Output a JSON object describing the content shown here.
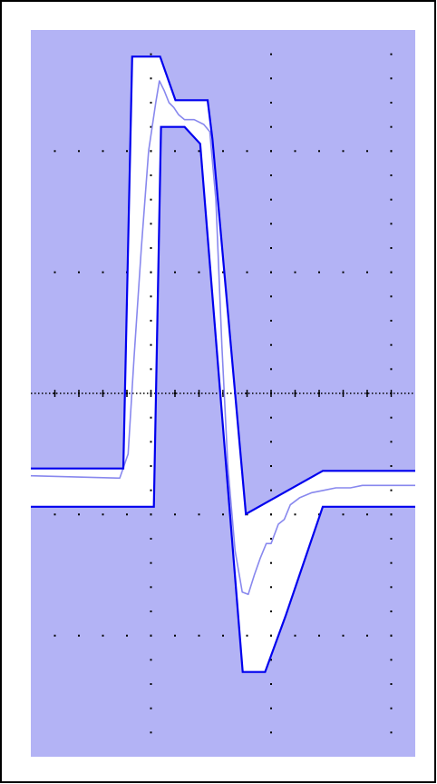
{
  "chart_data": {
    "type": "line",
    "title": "",
    "xlabel": "",
    "ylabel": "",
    "grid": true,
    "grid_style": "dotted",
    "legend": "none",
    "xlim": [
      -4,
      12
    ],
    "ylim": [
      -15,
      15
    ],
    "divisions": {
      "x": 16,
      "y": 30,
      "major_x": 5,
      "major_y": 5
    },
    "colors": {
      "frame": "#000000",
      "mask_fill": "#b3b3f5",
      "mask_edge": "#0000ee",
      "trace": "#8888ee",
      "envelope": "#ffffff",
      "grid_dot": "#000000"
    },
    "series": [
      {
        "role": "mask-upper-limit",
        "x": [
          -4.0,
          -0.15,
          0.22,
          1.38,
          2.02,
          3.36,
          3.56,
          4.95,
          8.15,
          12.0
        ],
        "y": [
          -3.1,
          -3.1,
          13.9,
          13.9,
          12.1,
          12.1,
          10.5,
          -4.98,
          -3.2,
          -3.2
        ]
      },
      {
        "role": "mask-lower-limit",
        "x": [
          -4.0,
          1.12,
          1.12,
          1.42,
          2.4,
          3.05,
          4.82,
          4.82,
          5.75,
          6.6,
          8.15,
          12.0
        ],
        "y": [
          -4.68,
          -4.68,
          -4.68,
          11.0,
          11.0,
          10.3,
          -11.5,
          -11.5,
          -11.5,
          -9.2,
          -4.68,
          -4.68
        ]
      },
      {
        "role": "signal-trace",
        "x": [
          -4.0,
          -0.3,
          0.05,
          0.3,
          0.6,
          0.9,
          1.2,
          1.35,
          1.55,
          1.75,
          1.95,
          2.15,
          2.4,
          2.8,
          3.2,
          3.45,
          3.7,
          3.95,
          4.2,
          4.5,
          4.8,
          5.05,
          5.3,
          5.55,
          5.8,
          6.0,
          6.3,
          6.55,
          6.8,
          7.2,
          7.7,
          8.2,
          8.7,
          9.3,
          9.8,
          10.2,
          12.0
        ],
        "y": [
          -3.4,
          -3.5,
          -2.5,
          1.5,
          6.0,
          10.0,
          12.0,
          12.9,
          12.5,
          12.0,
          11.8,
          11.5,
          11.3,
          11.3,
          11.1,
          10.8,
          8.0,
          2.0,
          -3.0,
          -6.5,
          -8.2,
          -8.3,
          -7.5,
          -6.8,
          -6.2,
          -6.2,
          -5.4,
          -5.2,
          -4.6,
          -4.3,
          -4.1,
          -4.0,
          -3.9,
          -3.9,
          -3.8,
          -3.8,
          -3.8
        ]
      }
    ]
  }
}
